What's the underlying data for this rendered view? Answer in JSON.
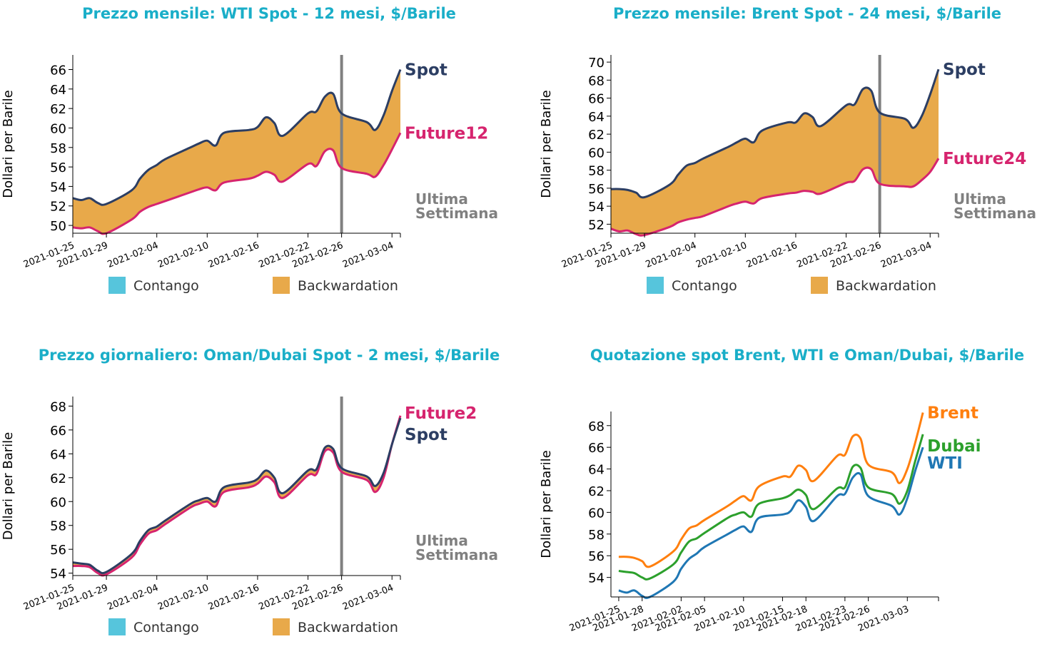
{
  "colors": {
    "title": "#1aaec8",
    "spot": "#2c3e63",
    "future": "#d6246e",
    "backwardation": "#e8a94a",
    "contango": "#56c5dc",
    "week_line": "#808080",
    "brent": "#ff7f0e",
    "dubai": "#2ca02c",
    "wti": "#1f77b4"
  },
  "legend": {
    "contango": "Contango",
    "backwardation": "Backwardation"
  },
  "week_label": [
    "Ultima",
    "Settimana"
  ],
  "chart_data": [
    {
      "id": "wti",
      "type": "area",
      "title": "Prezzo mensile: WTI Spot - 12 mesi, $/Barile",
      "ylabel": "Dollari per Barile",
      "xlabel": "",
      "ylim": [
        49.2,
        67.5
      ],
      "yticks": [
        50,
        52,
        54,
        56,
        58,
        60,
        62,
        64,
        66
      ],
      "x_start": "2021-01-25",
      "x_end": "2021-03-05",
      "x_ticks": [
        "2021-01-25",
        "2021-01-29",
        "2021-02-04",
        "2021-02-10",
        "2021-02-16",
        "2021-02-22",
        "2021-02-26",
        "2021-03-04"
      ],
      "week_marker": "2021-02-26",
      "dates": [
        "2021-01-25",
        "2021-01-26",
        "2021-01-27",
        "2021-01-28",
        "2021-01-29",
        "2021-02-01",
        "2021-02-02",
        "2021-02-03",
        "2021-02-04",
        "2021-02-05",
        "2021-02-08",
        "2021-02-09",
        "2021-02-10",
        "2021-02-11",
        "2021-02-12",
        "2021-02-15",
        "2021-02-16",
        "2021-02-17",
        "2021-02-18",
        "2021-02-19",
        "2021-02-22",
        "2021-02-23",
        "2021-02-24",
        "2021-02-25",
        "2021-02-26",
        "2021-03-01",
        "2021-03-02",
        "2021-03-03",
        "2021-03-04",
        "2021-03-05"
      ],
      "series": [
        {
          "name": "Spot",
          "role": "spot",
          "values": [
            52.8,
            52.6,
            52.8,
            52.3,
            52.2,
            53.6,
            54.8,
            55.7,
            56.2,
            56.8,
            58.0,
            58.4,
            58.7,
            58.2,
            59.5,
            59.8,
            60.1,
            61.1,
            60.5,
            59.2,
            61.5,
            61.7,
            63.2,
            63.5,
            61.5,
            60.6,
            59.8,
            61.3,
            63.8,
            66.0
          ]
        },
        {
          "name": "Future12",
          "role": "future",
          "values": [
            49.8,
            49.7,
            49.8,
            49.4,
            49.2,
            50.6,
            51.4,
            51.9,
            52.2,
            52.5,
            53.4,
            53.7,
            53.9,
            53.6,
            54.4,
            54.8,
            55.1,
            55.5,
            55.2,
            54.5,
            56.3,
            56.1,
            57.6,
            57.7,
            55.9,
            55.3,
            55.0,
            56.2,
            57.8,
            59.5
          ]
        }
      ]
    },
    {
      "id": "brent",
      "type": "area",
      "title": "Prezzo mensile: Brent Spot - 24 mesi, $/Barile",
      "ylabel": "Dollari per Barile",
      "xlabel": "",
      "ylim": [
        51.0,
        70.8
      ],
      "yticks": [
        52,
        54,
        56,
        58,
        60,
        62,
        64,
        66,
        68,
        70
      ],
      "x_start": "2021-01-25",
      "x_end": "2021-03-05",
      "x_ticks": [
        "2021-01-25",
        "2021-01-29",
        "2021-02-04",
        "2021-02-10",
        "2021-02-16",
        "2021-02-22",
        "2021-02-26",
        "2021-03-04"
      ],
      "week_marker": "2021-02-26",
      "dates": [
        "2021-01-25",
        "2021-01-26",
        "2021-01-27",
        "2021-01-28",
        "2021-01-29",
        "2021-02-01",
        "2021-02-02",
        "2021-02-03",
        "2021-02-04",
        "2021-02-05",
        "2021-02-08",
        "2021-02-09",
        "2021-02-10",
        "2021-02-11",
        "2021-02-12",
        "2021-02-15",
        "2021-02-16",
        "2021-02-17",
        "2021-02-18",
        "2021-02-19",
        "2021-02-22",
        "2021-02-23",
        "2021-02-24",
        "2021-02-25",
        "2021-02-26",
        "2021-03-01",
        "2021-03-02",
        "2021-03-03",
        "2021-03-04",
        "2021-03-05"
      ],
      "series": [
        {
          "name": "Spot",
          "role": "spot",
          "values": [
            55.9,
            55.9,
            55.8,
            55.5,
            55.0,
            56.4,
            57.5,
            58.5,
            58.8,
            59.3,
            60.6,
            61.1,
            61.5,
            61.1,
            62.4,
            63.3,
            63.3,
            64.3,
            63.9,
            62.9,
            65.2,
            65.3,
            67.0,
            66.8,
            64.4,
            63.7,
            62.7,
            64.0,
            66.4,
            69.2
          ]
        },
        {
          "name": "Future24",
          "role": "future",
          "values": [
            51.5,
            51.2,
            51.3,
            50.9,
            50.8,
            51.7,
            52.2,
            52.5,
            52.7,
            52.9,
            54.0,
            54.3,
            54.5,
            54.3,
            54.9,
            55.4,
            55.5,
            55.7,
            55.6,
            55.4,
            56.6,
            56.8,
            58.1,
            58.1,
            56.5,
            56.2,
            56.2,
            56.9,
            57.8,
            59.3
          ]
        }
      ]
    },
    {
      "id": "dubai",
      "type": "area",
      "title": "Prezzo giornaliero: Oman/Dubai Spot - 2 mesi, $/Barile",
      "ylabel": "Dollari per Barile",
      "xlabel": "",
      "ylim": [
        53.8,
        68.8
      ],
      "yticks": [
        54,
        56,
        58,
        60,
        62,
        64,
        66,
        68
      ],
      "x_start": "2021-01-25",
      "x_end": "2021-03-05",
      "x_ticks": [
        "2021-01-25",
        "2021-01-29",
        "2021-02-04",
        "2021-02-10",
        "2021-02-16",
        "2021-02-22",
        "2021-02-26",
        "2021-03-04"
      ],
      "week_marker": "2021-02-26",
      "dates": [
        "2021-01-25",
        "2021-01-26",
        "2021-01-27",
        "2021-01-28",
        "2021-01-29",
        "2021-02-01",
        "2021-02-02",
        "2021-02-03",
        "2021-02-04",
        "2021-02-05",
        "2021-02-08",
        "2021-02-09",
        "2021-02-10",
        "2021-02-11",
        "2021-02-12",
        "2021-02-15",
        "2021-02-16",
        "2021-02-17",
        "2021-02-18",
        "2021-02-19",
        "2021-02-22",
        "2021-02-23",
        "2021-02-24",
        "2021-02-25",
        "2021-02-26",
        "2021-03-01",
        "2021-03-02",
        "2021-03-03",
        "2021-03-04",
        "2021-03-05"
      ],
      "series": [
        {
          "name": "Spot",
          "role": "spot",
          "values": [
            54.9,
            54.8,
            54.7,
            54.2,
            54.1,
            55.6,
            56.7,
            57.6,
            57.9,
            58.4,
            59.8,
            60.1,
            60.3,
            60.0,
            61.2,
            61.6,
            61.9,
            62.6,
            62.0,
            60.7,
            62.6,
            62.7,
            64.5,
            64.4,
            62.8,
            62.1,
            61.3,
            62.4,
            64.8,
            67.0
          ]
        },
        {
          "name": "Future2",
          "role": "future",
          "values": [
            54.6,
            54.6,
            54.5,
            54.0,
            53.9,
            55.3,
            56.4,
            57.3,
            57.6,
            58.1,
            59.5,
            59.8,
            60.0,
            59.6,
            60.8,
            61.2,
            61.5,
            62.1,
            61.6,
            60.3,
            62.2,
            62.3,
            64.2,
            64.1,
            62.5,
            61.8,
            60.8,
            62.0,
            64.8,
            67.2
          ]
        }
      ]
    },
    {
      "id": "spot",
      "type": "line",
      "title": "Quotazione spot Brent, WTI e Oman/Dubai, $/Barile",
      "ylabel": "Dollari per Barile",
      "xlabel": "",
      "ylim": [
        52.2,
        69.3
      ],
      "yticks": [
        54,
        56,
        58,
        60,
        62,
        64,
        66,
        68
      ],
      "x_start": "2021-01-24",
      "x_end": "2021-03-07",
      "x_ticks": [
        "2021-01-25",
        "2021-01-28",
        "2021-02-02",
        "2021-02-05",
        "2021-02-10",
        "2021-02-15",
        "2021-02-18",
        "2021-02-23",
        "2021-02-26",
        "2021-03-03"
      ],
      "dates": [
        "2021-01-25",
        "2021-01-26",
        "2021-01-27",
        "2021-01-28",
        "2021-01-29",
        "2021-02-01",
        "2021-02-02",
        "2021-02-03",
        "2021-02-04",
        "2021-02-05",
        "2021-02-08",
        "2021-02-09",
        "2021-02-10",
        "2021-02-11",
        "2021-02-12",
        "2021-02-15",
        "2021-02-16",
        "2021-02-17",
        "2021-02-18",
        "2021-02-19",
        "2021-02-22",
        "2021-02-23",
        "2021-02-24",
        "2021-02-25",
        "2021-02-26",
        "2021-03-01",
        "2021-03-02",
        "2021-03-03",
        "2021-03-04",
        "2021-03-05"
      ],
      "series": [
        {
          "name": "Brent",
          "color_key": "brent",
          "values": [
            55.9,
            55.9,
            55.8,
            55.5,
            55.0,
            56.4,
            57.5,
            58.5,
            58.8,
            59.3,
            60.6,
            61.1,
            61.5,
            61.1,
            62.4,
            63.3,
            63.3,
            64.3,
            63.9,
            62.9,
            65.2,
            65.3,
            67.0,
            66.8,
            64.4,
            63.7,
            62.7,
            64.0,
            66.4,
            69.2
          ]
        },
        {
          "name": "Dubai",
          "color_key": "dubai",
          "values": [
            54.6,
            54.5,
            54.4,
            54.0,
            53.9,
            55.2,
            56.3,
            57.3,
            57.6,
            58.1,
            59.5,
            59.8,
            60.0,
            59.6,
            60.8,
            61.3,
            61.6,
            62.1,
            61.6,
            60.3,
            62.2,
            62.3,
            64.2,
            64.1,
            62.3,
            61.7,
            60.8,
            62.0,
            64.7,
            67.2
          ]
        },
        {
          "name": "WTI",
          "color_key": "wti",
          "values": [
            52.8,
            52.6,
            52.8,
            52.3,
            52.2,
            53.6,
            54.8,
            55.7,
            56.2,
            56.8,
            58.0,
            58.4,
            58.7,
            58.2,
            59.5,
            59.8,
            60.1,
            61.1,
            60.5,
            59.2,
            61.5,
            61.7,
            63.2,
            63.5,
            61.5,
            60.6,
            59.8,
            61.3,
            63.8,
            66.0
          ]
        }
      ]
    }
  ]
}
